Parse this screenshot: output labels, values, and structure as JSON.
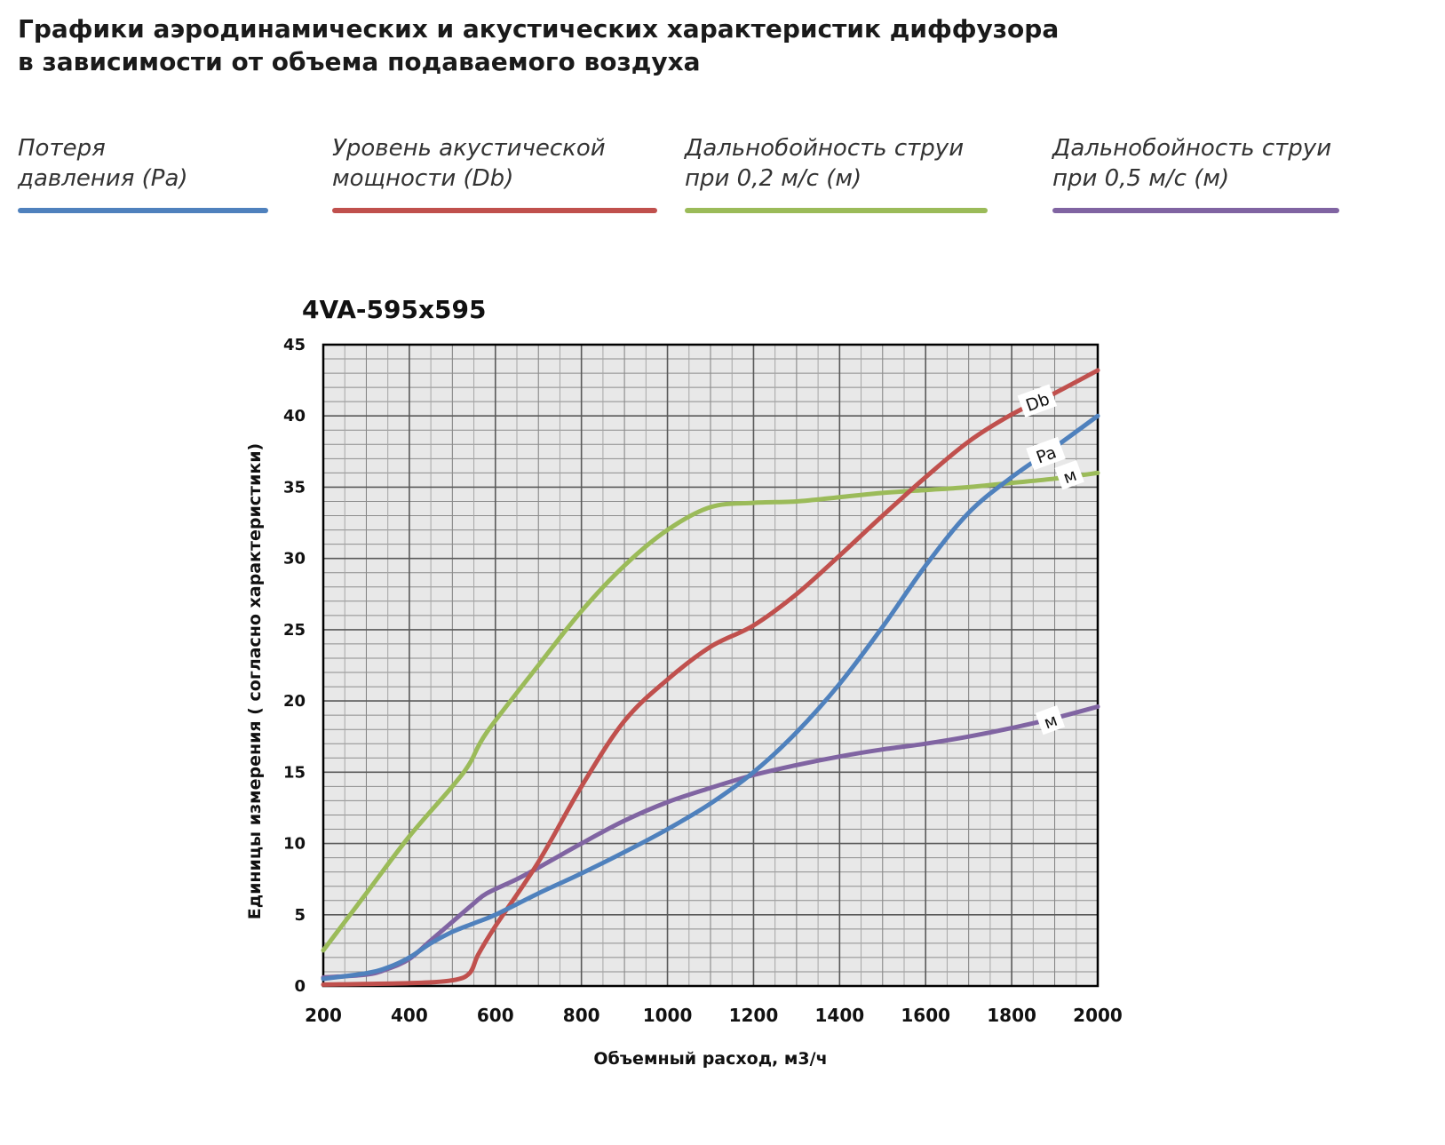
{
  "header": {
    "title_line1": "Графики аэродинамических и акустических характеристик  диффузора",
    "title_line2": "в зависимости от объема подаваемого воздуха"
  },
  "legend": [
    {
      "line1": "Потеря",
      "line2": "давления (Pa)",
      "color": "#4f81bd"
    },
    {
      "line1": "Уровень акустической",
      "line2": "мощности (Db)",
      "color": "#c0504d"
    },
    {
      "line1": "Дальнобойность струи",
      "line2": "при 0,2 м/с (м)",
      "color": "#9bbb59"
    },
    {
      "line1": "Дальнобойность струи",
      "line2": "при 0,5 м/с (м)",
      "color": "#8064a2"
    }
  ],
  "chart_data": {
    "type": "line",
    "title": "4VA-595x595",
    "xlabel": "Объемный расход, м3/ч",
    "ylabel": "Единицы измерения ( согласно характеристики)",
    "xlim": [
      200,
      2000
    ],
    "ylim": [
      0,
      45
    ],
    "x_ticks": [
      200,
      400,
      600,
      800,
      1000,
      1200,
      1400,
      1600,
      1800,
      2000
    ],
    "y_ticks": [
      0,
      5,
      10,
      15,
      20,
      25,
      30,
      35,
      40,
      45
    ],
    "grid": true,
    "series": [
      {
        "name": "Pa",
        "label": "Pa",
        "label_at": [
          1880,
          37.3
        ],
        "color": "#4f81bd",
        "points": [
          [
            200,
            0.5
          ],
          [
            300,
            0.9
          ],
          [
            350,
            1.3
          ],
          [
            400,
            2
          ],
          [
            450,
            3
          ],
          [
            500,
            3.8
          ],
          [
            550,
            4.4
          ],
          [
            600,
            5
          ],
          [
            700,
            6.5
          ],
          [
            800,
            7.9
          ],
          [
            900,
            9.4
          ],
          [
            1000,
            11
          ],
          [
            1100,
            12.8
          ],
          [
            1200,
            15
          ],
          [
            1300,
            17.8
          ],
          [
            1400,
            21.2
          ],
          [
            1500,
            25.2
          ],
          [
            1600,
            29.5
          ],
          [
            1700,
            33.2
          ],
          [
            1800,
            35.7
          ],
          [
            1900,
            37.8
          ],
          [
            2000,
            40
          ]
        ]
      },
      {
        "name": "Db",
        "label": "Db",
        "label_at": [
          1860,
          41
        ],
        "color": "#c0504d",
        "points": [
          [
            200,
            0.1
          ],
          [
            400,
            0.2
          ],
          [
            500,
            0.4
          ],
          [
            540,
            0.9
          ],
          [
            560,
            2.2
          ],
          [
            600,
            4.2
          ],
          [
            700,
            8.7
          ],
          [
            800,
            14
          ],
          [
            900,
            18.6
          ],
          [
            1000,
            21.5
          ],
          [
            1100,
            23.8
          ],
          [
            1200,
            25.3
          ],
          [
            1300,
            27.5
          ],
          [
            1400,
            30.2
          ],
          [
            1500,
            33
          ],
          [
            1600,
            35.7
          ],
          [
            1700,
            38.2
          ],
          [
            1800,
            40.1
          ],
          [
            1900,
            41.6
          ],
          [
            2000,
            43.2
          ]
        ]
      },
      {
        "name": "м 0,2 м/с",
        "label": "м",
        "label_at": [
          1935,
          35.8
        ],
        "color": "#9bbb59",
        "points": [
          [
            200,
            2.5
          ],
          [
            300,
            6.5
          ],
          [
            400,
            10.5
          ],
          [
            500,
            14
          ],
          [
            540,
            15.6
          ],
          [
            580,
            17.8
          ],
          [
            700,
            22.5
          ],
          [
            800,
            26.3
          ],
          [
            900,
            29.5
          ],
          [
            1000,
            32
          ],
          [
            1100,
            33.6
          ],
          [
            1200,
            33.9
          ],
          [
            1300,
            34
          ],
          [
            1400,
            34.3
          ],
          [
            1500,
            34.6
          ],
          [
            1600,
            34.8
          ],
          [
            1700,
            35
          ],
          [
            1800,
            35.3
          ],
          [
            1900,
            35.6
          ],
          [
            2000,
            36
          ]
        ]
      },
      {
        "name": "м 0,5 м/с",
        "label": "м",
        "label_at": [
          1890,
          18.6
        ],
        "color": "#8064a2",
        "points": [
          [
            200,
            0.6
          ],
          [
            300,
            0.8
          ],
          [
            350,
            1.2
          ],
          [
            400,
            1.9
          ],
          [
            450,
            3.2
          ],
          [
            500,
            4.5
          ],
          [
            550,
            5.8
          ],
          [
            580,
            6.5
          ],
          [
            650,
            7.5
          ],
          [
            700,
            8.3
          ],
          [
            800,
            10
          ],
          [
            900,
            11.6
          ],
          [
            1000,
            12.9
          ],
          [
            1100,
            13.9
          ],
          [
            1200,
            14.8
          ],
          [
            1300,
            15.5
          ],
          [
            1400,
            16.1
          ],
          [
            1500,
            16.6
          ],
          [
            1600,
            17
          ],
          [
            1700,
            17.5
          ],
          [
            1800,
            18.1
          ],
          [
            1900,
            18.8
          ],
          [
            2000,
            19.6
          ]
        ]
      }
    ]
  }
}
